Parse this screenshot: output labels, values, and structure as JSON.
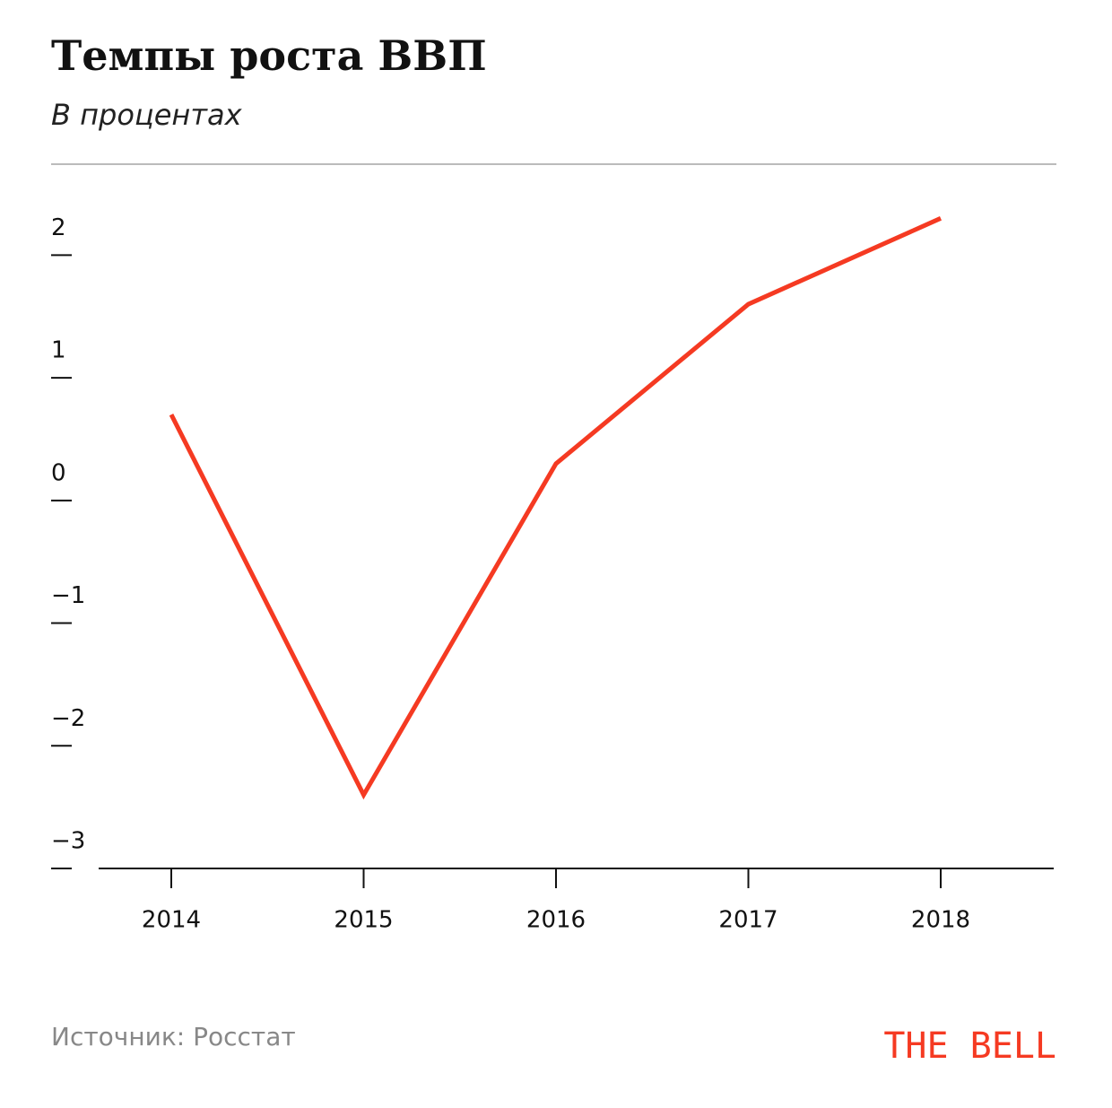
{
  "chart_data": {
    "type": "line",
    "title": "Темпы роста ВВП",
    "subtitle": "В процентах",
    "categories": [
      "2014",
      "2015",
      "2016",
      "2017",
      "2018"
    ],
    "series": [
      {
        "name": "ВВП",
        "color": "#f53a22",
        "values": [
          0.7,
          -2.4,
          0.3,
          1.6,
          2.3
        ]
      }
    ],
    "ylim": [
      -3,
      2.5
    ],
    "yticks": [
      {
        "value": -3,
        "label": "−3"
      },
      {
        "value": -2,
        "label": "−2"
      },
      {
        "value": -1,
        "label": "−1"
      },
      0,
      1,
      2
    ],
    "source": "Источник: Росстат",
    "logo": "THE BELL"
  }
}
